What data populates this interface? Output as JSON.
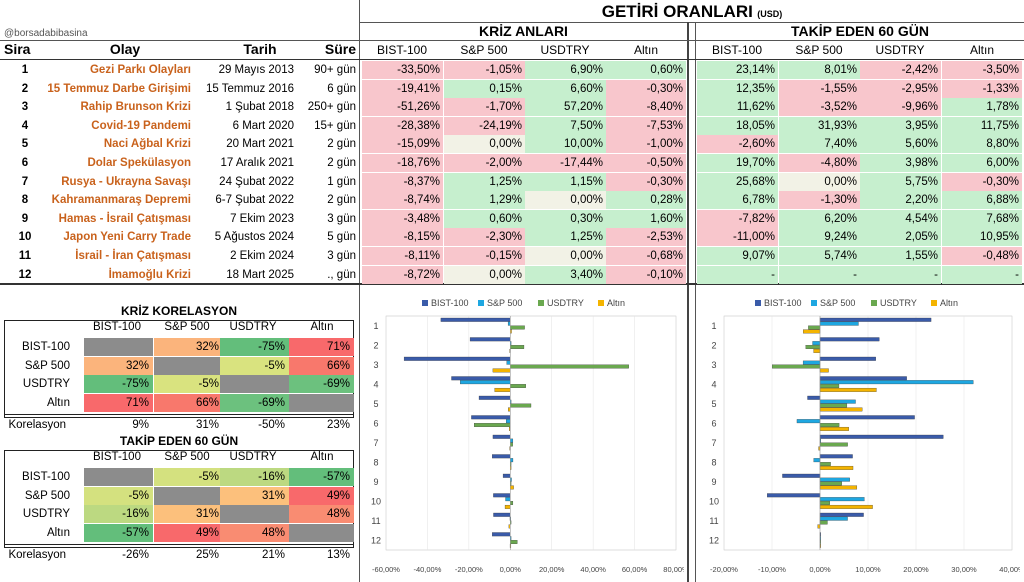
{
  "watermark": "@borsadabibasina",
  "main_title": "GETİRİ ORANLARI",
  "main_title_unit": "(USD)",
  "group_crisis": "KRİZ ANLARI",
  "group_after": "TAKİP EDEN 60 GÜN",
  "columns": {
    "sira": "Sira",
    "olay": "Olay",
    "tarih": "Tarih",
    "sure": "Süre"
  },
  "assets": [
    "BIST-100",
    "S&P 500",
    "USDTRY",
    "Altın"
  ],
  "rows": [
    {
      "n": "1",
      "event": "Gezi Parkı Olayları",
      "date": "29 Mayıs 2013",
      "dur": "90+ gün",
      "crisis": [
        "-33,50%",
        "-1,05%",
        "6,90%",
        "0,60%"
      ],
      "after": [
        "23,14%",
        "8,01%",
        "-2,42%",
        "-3,50%"
      ]
    },
    {
      "n": "2",
      "event": "15 Temmuz Darbe Girişimi",
      "date": "15 Temmuz 2016",
      "dur": "6 gün",
      "crisis": [
        "-19,41%",
        "0,15%",
        "6,60%",
        "-0,30%"
      ],
      "after": [
        "12,35%",
        "-1,55%",
        "-2,95%",
        "-1,33%"
      ]
    },
    {
      "n": "3",
      "event": "Rahip Brunson Krizi",
      "date": "1 Şubat 2018",
      "dur": "250+ gün",
      "crisis": [
        "-51,26%",
        "-1,70%",
        "57,20%",
        "-8,40%"
      ],
      "after": [
        "11,62%",
        "-3,52%",
        "-9,96%",
        "1,78%"
      ]
    },
    {
      "n": "4",
      "event": "Covid-19 Pandemi",
      "date": "6 Mart 2020",
      "dur": "15+ gün",
      "crisis": [
        "-28,38%",
        "-24,19%",
        "7,50%",
        "-7,53%"
      ],
      "after": [
        "18,05%",
        "31,93%",
        "3,95%",
        "11,75%"
      ]
    },
    {
      "n": "5",
      "event": "Naci Ağbal Krizi",
      "date": "20 Mart 2021",
      "dur": "2 gün",
      "crisis": [
        "-15,09%",
        "0,00%",
        "10,00%",
        "-1,00%"
      ],
      "after": [
        "-2,60%",
        "7,40%",
        "5,60%",
        "8,80%"
      ]
    },
    {
      "n": "6",
      "event": "Dolar Spekülasyon",
      "date": "17 Aralık 2021",
      "dur": "2 gün",
      "crisis": [
        "-18,76%",
        "-2,00%",
        "-17,44%",
        "-0,50%"
      ],
      "after": [
        "19,70%",
        "-4,80%",
        "3,98%",
        "6,00%"
      ]
    },
    {
      "n": "7",
      "event": "Rusya - Ukrayna Savaşı",
      "date": "24 Şubat 2022",
      "dur": "1 gün",
      "crisis": [
        "-8,37%",
        "1,25%",
        "1,15%",
        "-0,30%"
      ],
      "after": [
        "25,68%",
        "0,00%",
        "5,75%",
        "-0,30%"
      ]
    },
    {
      "n": "8",
      "event": "Kahramanmaraş Depremi",
      "date": "6-7 Şubat 2022",
      "dur": "2 gün",
      "crisis": [
        "-8,74%",
        "1,29%",
        "0,00%",
        "0,28%"
      ],
      "after": [
        "6,78%",
        "-1,30%",
        "2,20%",
        "6,88%"
      ]
    },
    {
      "n": "9",
      "event": "Hamas - İsrail Çatışması",
      "date": "7 Ekim 2023",
      "dur": "3 gün",
      "crisis": [
        "-3,48%",
        "0,60%",
        "0,30%",
        "1,60%"
      ],
      "after": [
        "-7,82%",
        "6,20%",
        "4,54%",
        "7,68%"
      ]
    },
    {
      "n": "10",
      "event": "Japon Yeni Carry Trade",
      "date": "5 Ağustos 2024",
      "dur": "5 gün",
      "crisis": [
        "-8,15%",
        "-2,30%",
        "1,25%",
        "-2,53%"
      ],
      "after": [
        "-11,00%",
        "9,24%",
        "2,05%",
        "10,95%"
      ]
    },
    {
      "n": "11",
      "event": "İsrail - İran Çatışması",
      "date": "2 Ekim 2024",
      "dur": "3 gün",
      "crisis": [
        "-8,11%",
        "-0,15%",
        "0,00%",
        "-0,68%"
      ],
      "after": [
        "9,07%",
        "5,74%",
        "1,55%",
        "-0,48%"
      ]
    },
    {
      "n": "12",
      "event": "İmamoğlu Krizi",
      "date": "18 Mart 2025",
      "dur": "., gün",
      "crisis": [
        "-8,72%",
        "0,00%",
        "3,40%",
        "-0,10%"
      ],
      "after": [
        "-",
        "-",
        "-",
        "-"
      ]
    }
  ],
  "corr1": {
    "title": "KRİZ KORELASYON",
    "rows": [
      {
        "label": "BIST-100",
        "vals": [
          "",
          "32%",
          "-75%",
          "71%"
        ]
      },
      {
        "label": "S&P 500",
        "vals": [
          "32%",
          "",
          "-5%",
          "66%"
        ]
      },
      {
        "label": "USDTRY",
        "vals": [
          "-75%",
          "-5%",
          "",
          "-69%"
        ]
      },
      {
        "label": "Altın",
        "vals": [
          "71%",
          "66%",
          "-69%",
          ""
        ]
      }
    ],
    "footer_label": "Korelasyon",
    "footer": [
      "9%",
      "31%",
      "-50%",
      "23%"
    ]
  },
  "corr2": {
    "title": "TAKİP EDEN 60 GÜN",
    "rows": [
      {
        "label": "BIST-100",
        "vals": [
          "",
          "-5%",
          "-16%",
          "-57%"
        ]
      },
      {
        "label": "S&P 500",
        "vals": [
          "-5%",
          "",
          "31%",
          "49%"
        ]
      },
      {
        "label": "USDTRY",
        "vals": [
          "-16%",
          "31%",
          "",
          "48%"
        ]
      },
      {
        "label": "Altın",
        "vals": [
          "-57%",
          "49%",
          "48%",
          ""
        ]
      }
    ],
    "footer_label": "Korelasyon",
    "footer": [
      "-26%",
      "25%",
      "21%",
      "13%"
    ]
  },
  "colors": {
    "bist": "#3a5ba9",
    "sp": "#1ea7e1",
    "usd": "#6aa84f",
    "gold": "#f4b400",
    "neg": "#f8c6cc",
    "pos": "#c6efce",
    "zero": "#f2f2e6"
  },
  "chart_data": [
    {
      "type": "bar",
      "orientation": "horizontal",
      "categories": [
        "1",
        "2",
        "3",
        "4",
        "5",
        "6",
        "7",
        "8",
        "9",
        "10",
        "11",
        "12"
      ],
      "series": [
        {
          "name": "BIST-100",
          "values": [
            -33.5,
            -19.41,
            -51.26,
            -28.38,
            -15.09,
            -18.76,
            -8.37,
            -8.74,
            -3.48,
            -8.15,
            -8.11,
            -8.72
          ]
        },
        {
          "name": "S&P 500",
          "values": [
            -1.05,
            0.15,
            -1.7,
            -24.19,
            0,
            -2,
            1.25,
            1.29,
            0.6,
            -2.3,
            -0.15,
            0
          ]
        },
        {
          "name": "USDTRY",
          "values": [
            6.9,
            6.6,
            57.2,
            7.5,
            10,
            -17.44,
            1.15,
            0,
            0.3,
            1.25,
            0,
            3.4
          ]
        },
        {
          "name": "Altın",
          "values": [
            0.6,
            -0.3,
            -8.4,
            -7.53,
            -1,
            -0.5,
            -0.3,
            0.28,
            1.6,
            -2.53,
            -0.68,
            -0.1
          ]
        }
      ],
      "xlim": [
        -60,
        80
      ],
      "ticks": [
        "-60,00%",
        "-40,00%",
        "-20,00%",
        "0,00%",
        "20,00%",
        "40,00%",
        "60,00%",
        "80,00%"
      ],
      "tick_values": [
        -60,
        -40,
        -20,
        0,
        20,
        40,
        60,
        80
      ],
      "legend": "top"
    },
    {
      "type": "bar",
      "orientation": "horizontal",
      "categories": [
        "1",
        "2",
        "3",
        "4",
        "5",
        "6",
        "7",
        "8",
        "9",
        "10",
        "11",
        "12"
      ],
      "series": [
        {
          "name": "BIST-100",
          "values": [
            23.14,
            12.35,
            11.62,
            18.05,
            -2.6,
            19.7,
            25.68,
            6.78,
            -7.82,
            -11,
            9.07,
            0
          ]
        },
        {
          "name": "S&P 500",
          "values": [
            8.01,
            -1.55,
            -3.52,
            31.93,
            7.4,
            -4.8,
            0,
            -1.3,
            6.2,
            9.24,
            5.74,
            0
          ]
        },
        {
          "name": "USDTRY",
          "values": [
            -2.42,
            -2.95,
            -9.96,
            3.95,
            5.6,
            3.98,
            5.75,
            2.2,
            4.54,
            2.05,
            1.55,
            0
          ]
        },
        {
          "name": "Altın",
          "values": [
            -3.5,
            -1.33,
            1.78,
            11.75,
            8.8,
            6,
            -0.3,
            6.88,
            7.68,
            10.95,
            -0.48,
            0
          ]
        }
      ],
      "xlim": [
        -20,
        40
      ],
      "ticks": [
        "-20,00%",
        "-10,00%",
        "0,00%",
        "10,00%",
        "20,00%",
        "30,00%",
        "40,00%"
      ],
      "tick_values": [
        -20,
        -10,
        0,
        10,
        20,
        30,
        40
      ],
      "legend": "top"
    }
  ]
}
